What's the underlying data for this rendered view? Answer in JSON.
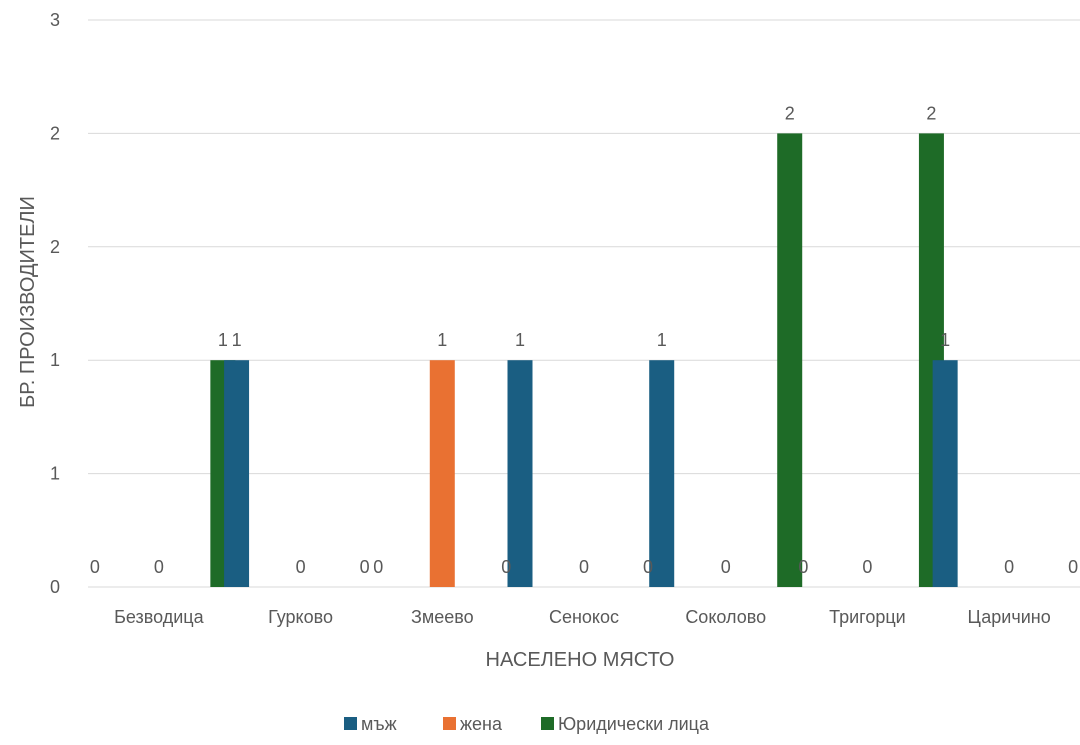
{
  "chart_data": {
    "type": "bar",
    "title": "",
    "xlabel": "НАСЕЛЕНО МЯСТО",
    "ylabel": "БР. ПРОИЗВОДИТЕЛИ",
    "categories": [
      "Безводица",
      "Гурково",
      "Змеево",
      "Сенокос",
      "Соколово",
      "Тригорци",
      "Царичино"
    ],
    "series": [
      {
        "name": "мъж",
        "color": "#1a5e82",
        "values": [
          0,
          1,
          0,
          1,
          1,
          0,
          1
        ]
      },
      {
        "name": "жена",
        "color": "#e97132",
        "values": [
          0,
          0,
          1,
          0,
          0,
          0,
          0
        ]
      },
      {
        "name": "Юридически лица",
        "color": "#1e6b27",
        "values": [
          1,
          0,
          0,
          0,
          2,
          2,
          0
        ]
      }
    ],
    "y_tick_labels": [
      "0",
      "1",
      "1",
      "2",
      "2",
      "3"
    ],
    "ylim": [
      0,
      2.5
    ],
    "grid": true,
    "legend_position": "bottom"
  }
}
